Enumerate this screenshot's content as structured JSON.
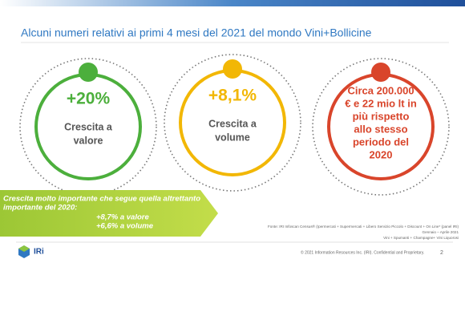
{
  "title": "Alcuni numeri relativi ai primi 4 mesi del 2021 del mondo Vini+Bollicine",
  "circles": [
    {
      "value": "+20%",
      "lines": [
        "Crescita a",
        "valore"
      ]
    },
    {
      "value": "+8,1%",
      "lines": [
        "Crescita a",
        "volume"
      ]
    },
    {
      "lines": [
        "Circa 200.000",
        "€ e 22 mio lt in",
        "più rispetto",
        "allo stesso",
        "periodo del",
        "2020"
      ]
    }
  ],
  "banner": {
    "lines": [
      "Crescita molto importante che segue quella altrettanto",
      "importante del 2020:",
      "+8,7% a valore",
      "+6,6% a volume"
    ]
  },
  "source": [
    "Fonte: IRI Infoscan Census® (Ipermercati + Supermercati + Libero Servizio Piccolo + Discount + On Line* (panel IRI)",
    "Gennaio – Aprile 2021",
    "Vini + Spumanti + Champagne+ Vini Liquorosi"
  ],
  "footer": {
    "logo": "IRi",
    "copyright": "© 2021 Information Resources Inc. (IRI). Confidential and Proprietary.",
    "page": "2"
  }
}
